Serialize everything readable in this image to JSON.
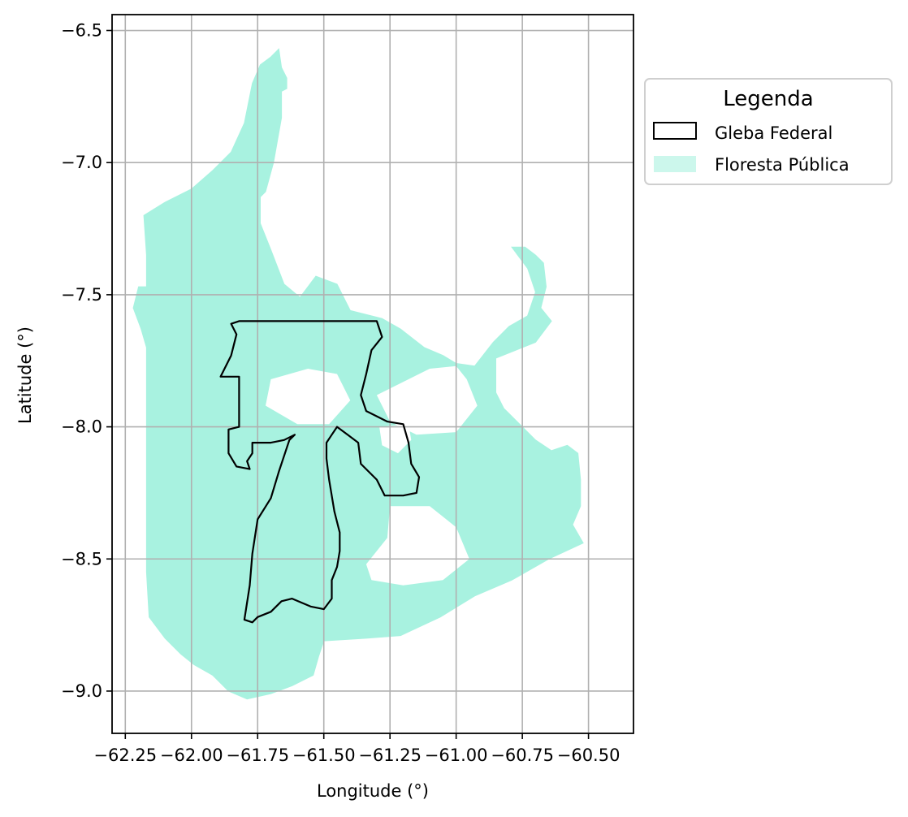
{
  "chart_data": {
    "type": "map",
    "xlabel": "Longitude (°)",
    "ylabel": "Latitude (°)",
    "xlim": [
      -62.3,
      -60.33
    ],
    "ylim": [
      -9.16,
      -6.44
    ],
    "x_ticks": [
      -62.25,
      -62.0,
      -61.75,
      -61.5,
      -61.25,
      -61.0,
      -60.75,
      -60.5
    ],
    "x_tick_labels": [
      "−62.25",
      "−62.00",
      "−61.75",
      "−61.50",
      "−61.25",
      "−61.00",
      "−60.75",
      "−60.50"
    ],
    "y_ticks": [
      -6.5,
      -7.0,
      -7.5,
      -8.0,
      -8.5,
      -9.0
    ],
    "y_tick_labels": [
      "−6.5",
      "−7.0",
      "−7.5",
      "−8.0",
      "−8.5",
      "−9.0"
    ],
    "grid": true,
    "legend": {
      "title": "Legenda",
      "placement": "outside upper right",
      "entries": [
        {
          "label": "Gleba Federal",
          "style": "outline",
          "color": "#000000"
        },
        {
          "label": "Floresta Pública",
          "style": "fill",
          "color": "#a8f2e0"
        }
      ]
    },
    "layers": [
      {
        "name": "Floresta Pública",
        "fill": "#a8f2e0",
        "coordinates": [
          [
            -61.67,
            -6.57
          ],
          [
            -61.66,
            -6.64
          ],
          [
            -61.64,
            -6.68
          ],
          [
            -61.64,
            -6.72
          ],
          [
            -61.66,
            -6.73
          ],
          [
            -61.66,
            -6.83
          ],
          [
            -61.69,
            -7.0
          ],
          [
            -61.72,
            -7.11
          ],
          [
            -61.74,
            -7.13
          ],
          [
            -61.74,
            -7.23
          ],
          [
            -61.7,
            -7.33
          ],
          [
            -61.65,
            -7.46
          ],
          [
            -61.59,
            -7.51
          ],
          [
            -61.53,
            -7.43
          ],
          [
            -61.45,
            -7.46
          ],
          [
            -61.4,
            -7.56
          ],
          [
            -61.28,
            -7.59
          ],
          [
            -61.21,
            -7.63
          ],
          [
            -61.12,
            -7.7
          ],
          [
            -61.05,
            -7.73
          ],
          [
            -61.0,
            -7.76
          ],
          [
            -60.93,
            -7.77
          ],
          [
            -60.86,
            -7.68
          ],
          [
            -60.8,
            -7.62
          ],
          [
            -60.73,
            -7.58
          ],
          [
            -60.7,
            -7.49
          ],
          [
            -60.73,
            -7.4
          ],
          [
            -60.79,
            -7.32
          ],
          [
            -60.74,
            -7.32
          ],
          [
            -60.7,
            -7.35
          ],
          [
            -60.67,
            -7.38
          ],
          [
            -60.66,
            -7.47
          ],
          [
            -60.68,
            -7.55
          ],
          [
            -60.64,
            -7.6
          ],
          [
            -60.7,
            -7.68
          ],
          [
            -60.85,
            -7.74
          ],
          [
            -60.85,
            -7.87
          ],
          [
            -60.82,
            -7.93
          ],
          [
            -60.76,
            -7.99
          ],
          [
            -60.7,
            -8.05
          ],
          [
            -60.64,
            -8.09
          ],
          [
            -60.58,
            -8.07
          ],
          [
            -60.54,
            -8.1
          ],
          [
            -60.53,
            -8.2
          ],
          [
            -60.53,
            -8.3
          ],
          [
            -60.56,
            -8.37
          ],
          [
            -60.52,
            -8.44
          ],
          [
            -60.65,
            -8.5
          ],
          [
            -60.79,
            -8.58
          ],
          [
            -60.93,
            -8.64
          ],
          [
            -61.06,
            -8.72
          ],
          [
            -61.21,
            -8.79
          ],
          [
            -61.34,
            -8.8
          ],
          [
            -61.5,
            -8.81
          ],
          [
            -61.52,
            -8.87
          ],
          [
            -61.54,
            -8.94
          ],
          [
            -61.62,
            -8.98
          ],
          [
            -61.7,
            -9.01
          ],
          [
            -61.79,
            -9.03
          ],
          [
            -61.86,
            -9.0
          ],
          [
            -61.92,
            -8.94
          ],
          [
            -61.99,
            -8.9
          ],
          [
            -62.04,
            -8.86
          ],
          [
            -62.1,
            -8.8
          ],
          [
            -62.16,
            -8.72
          ],
          [
            -62.17,
            -8.55
          ],
          [
            -62.17,
            -8.0
          ],
          [
            -62.17,
            -7.8
          ],
          [
            -62.17,
            -7.7
          ],
          [
            -62.19,
            -7.63
          ],
          [
            -62.22,
            -7.55
          ],
          [
            -62.2,
            -7.47
          ],
          [
            -62.17,
            -7.47
          ],
          [
            -62.17,
            -7.35
          ],
          [
            -62.18,
            -7.2
          ],
          [
            -62.1,
            -7.15
          ],
          [
            -62.0,
            -7.1
          ],
          [
            -61.92,
            -7.03
          ],
          [
            -61.85,
            -6.96
          ],
          [
            -61.8,
            -6.85
          ],
          [
            -61.77,
            -6.7
          ],
          [
            -61.74,
            -6.63
          ],
          [
            -61.7,
            -6.6
          ]
        ]
      },
      {
        "name": "Gleba Federal",
        "stroke": "#000000",
        "coordinates": [
          [
            -61.85,
            -7.61
          ],
          [
            -61.82,
            -7.6
          ],
          [
            -61.3,
            -7.6
          ],
          [
            -61.28,
            -7.66
          ],
          [
            -61.32,
            -7.71
          ],
          [
            -61.34,
            -7.8
          ],
          [
            -61.36,
            -7.88
          ],
          [
            -61.34,
            -7.94
          ],
          [
            -61.26,
            -7.98
          ],
          [
            -61.2,
            -7.99
          ],
          [
            -61.18,
            -8.06
          ],
          [
            -61.17,
            -8.14
          ],
          [
            -61.14,
            -8.19
          ],
          [
            -61.15,
            -8.25
          ],
          [
            -61.2,
            -8.26
          ],
          [
            -61.27,
            -8.26
          ],
          [
            -61.3,
            -8.2
          ],
          [
            -61.36,
            -8.14
          ],
          [
            -61.37,
            -8.06
          ],
          [
            -61.41,
            -8.03
          ],
          [
            -61.45,
            -8.0
          ],
          [
            -61.47,
            -8.03
          ],
          [
            -61.49,
            -8.06
          ],
          [
            -61.49,
            -8.12
          ],
          [
            -61.48,
            -8.2
          ],
          [
            -61.46,
            -8.32
          ],
          [
            -61.44,
            -8.4
          ],
          [
            -61.44,
            -8.47
          ],
          [
            -61.45,
            -8.53
          ],
          [
            -61.47,
            -8.58
          ],
          [
            -61.47,
            -8.65
          ],
          [
            -61.5,
            -8.69
          ],
          [
            -61.55,
            -8.68
          ],
          [
            -61.62,
            -8.65
          ],
          [
            -61.66,
            -8.66
          ],
          [
            -61.7,
            -8.7
          ],
          [
            -61.75,
            -8.72
          ],
          [
            -61.77,
            -8.74
          ],
          [
            -61.8,
            -8.73
          ],
          [
            -61.78,
            -8.6
          ],
          [
            -61.77,
            -8.48
          ],
          [
            -61.75,
            -8.35
          ],
          [
            -61.7,
            -8.27
          ],
          [
            -61.67,
            -8.17
          ],
          [
            -61.63,
            -8.05
          ],
          [
            -61.61,
            -8.03
          ],
          [
            -61.65,
            -8.05
          ],
          [
            -61.7,
            -8.06
          ],
          [
            -61.77,
            -8.06
          ],
          [
            -61.77,
            -8.1
          ],
          [
            -61.79,
            -8.13
          ],
          [
            -61.78,
            -8.16
          ],
          [
            -61.83,
            -8.15
          ],
          [
            -61.86,
            -8.1
          ],
          [
            -61.86,
            -8.01
          ],
          [
            -61.82,
            -8.0
          ],
          [
            -61.82,
            -7.81
          ],
          [
            -61.89,
            -7.81
          ],
          [
            -61.87,
            -7.77
          ],
          [
            -61.85,
            -7.73
          ],
          [
            -61.84,
            -7.69
          ],
          [
            -61.83,
            -7.65
          ]
        ]
      }
    ]
  }
}
